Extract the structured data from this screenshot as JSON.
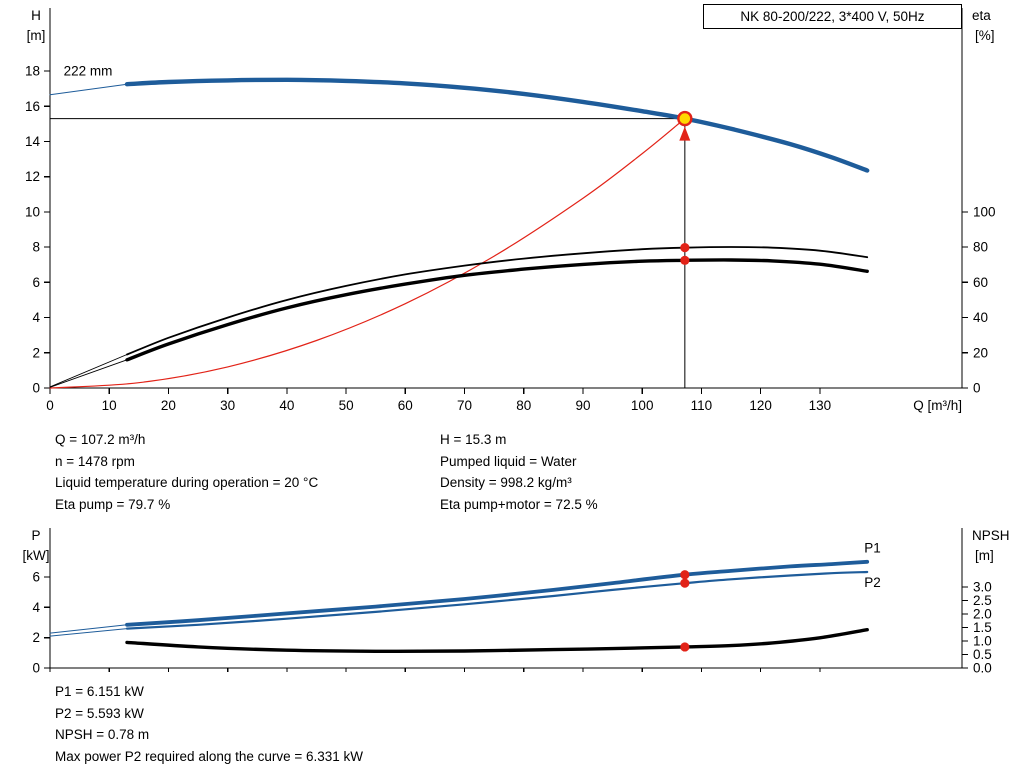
{
  "title_box": "NK 80-200/222, 3*400 V, 50Hz",
  "colors": {
    "blue": "#1e5c9a",
    "red": "#e22318",
    "black": "#000000",
    "yellow": "#ffd800"
  },
  "info_top": {
    "col1": [
      "Q = 107.2 m³/h",
      "n = 1478 rpm",
      "Liquid temperature during operation = 20 °C",
      "Eta pump = 79.7 %"
    ],
    "col2": [
      "H = 15.3 m",
      "Pumped liquid = Water",
      "Density = 998.2 kg/m³",
      "Eta pump+motor = 72.5 %"
    ]
  },
  "info_bottom": [
    "P1 = 6.151 kW",
    "P2 = 5.593 kW",
    "NPSH = 0.78 m",
    "Max power P2 required along the curve = 6.331 kW"
  ],
  "chart_data": [
    {
      "id": "hq",
      "type": "line",
      "title": "NK 80-200/222, 3*400 V, 50Hz",
      "x_axis": {
        "label": "Q [m³/h]",
        "max": 154,
        "ticks": [
          {
            "v": 0,
            "t": "0"
          },
          {
            "v": 10,
            "t": "10"
          },
          {
            "v": 20,
            "t": "20"
          },
          {
            "v": 30,
            "t": "30"
          },
          {
            "v": 40,
            "t": "40"
          },
          {
            "v": 50,
            "t": "50"
          },
          {
            "v": 60,
            "t": "60"
          },
          {
            "v": 70,
            "t": "70"
          },
          {
            "v": 80,
            "t": "80"
          },
          {
            "v": 90,
            "t": "90"
          },
          {
            "v": 100,
            "t": "100"
          },
          {
            "v": 110,
            "t": "110"
          },
          {
            "v": 120,
            "t": "120"
          },
          {
            "v": 130,
            "t": "130"
          }
        ]
      },
      "y_left": {
        "title": [
          "H",
          "[m]"
        ],
        "max": 21.58,
        "ticks": [
          {
            "v": 0,
            "t": "0"
          },
          {
            "v": 2,
            "t": "2"
          },
          {
            "v": 4,
            "t": "4"
          },
          {
            "v": 6,
            "t": "6"
          },
          {
            "v": 8,
            "t": "8"
          },
          {
            "v": 10,
            "t": "10"
          },
          {
            "v": 12,
            "t": "12"
          },
          {
            "v": 14,
            "t": "14"
          },
          {
            "v": 16,
            "t": "16"
          },
          {
            "v": 18,
            "t": "18"
          }
        ]
      },
      "y_right": {
        "title": [
          "eta",
          "[%]"
        ],
        "left_units_per_unit": 0.1,
        "ticks": [
          {
            "v": 0,
            "t": "0"
          },
          {
            "v": 20,
            "t": "20"
          },
          {
            "v": 40,
            "t": "40"
          },
          {
            "v": 60,
            "t": "60"
          },
          {
            "v": 80,
            "t": "80"
          },
          {
            "v": 100,
            "t": "100"
          }
        ]
      },
      "series": [
        {
          "name": "system-curve",
          "axis": "left",
          "color": "red",
          "width": 1.2,
          "points": [
            [
              0,
              0
            ],
            [
              15,
              0.3
            ],
            [
              30,
              1.2
            ],
            [
              45,
              2.7
            ],
            [
              60,
              4.79
            ],
            [
              75,
              7.49
            ],
            [
              90,
              10.78
            ],
            [
              100,
              13.31
            ],
            [
              107.2,
              15.3
            ]
          ]
        },
        {
          "name": "head-lead-line",
          "axis": "left",
          "color": "blue",
          "width": 1,
          "points": [
            [
              0,
              16.65
            ],
            [
              13,
              17.25
            ]
          ]
        },
        {
          "name": "head-curve",
          "axis": "left",
          "color": "blue",
          "width": 4.4,
          "points": [
            [
              13,
              17.25
            ],
            [
              20,
              17.38
            ],
            [
              30,
              17.47
            ],
            [
              40,
              17.5
            ],
            [
              50,
              17.44
            ],
            [
              60,
              17.3
            ],
            [
              70,
              17.05
            ],
            [
              80,
              16.7
            ],
            [
              90,
              16.25
            ],
            [
              100,
              15.72
            ],
            [
              107.2,
              15.3
            ],
            [
              115,
              14.72
            ],
            [
              125,
              13.85
            ],
            [
              132,
              13.1
            ],
            [
              138,
              12.35
            ]
          ]
        },
        {
          "name": "eta-pump-lead-line",
          "axis": "right",
          "color": "black",
          "width": 0.9,
          "points": [
            [
              0,
              0.6
            ],
            [
              13,
              19
            ]
          ]
        },
        {
          "name": "eta-pump-curve",
          "axis": "right",
          "color": "black",
          "width": 1.8,
          "points": [
            [
              13,
              19
            ],
            [
              20,
              28.5
            ],
            [
              30,
              40
            ],
            [
              40,
              50
            ],
            [
              50,
              58
            ],
            [
              60,
              64.5
            ],
            [
              70,
              69.5
            ],
            [
              80,
              73.5
            ],
            [
              90,
              76.5
            ],
            [
              100,
              78.8
            ],
            [
              107.2,
              79.7
            ],
            [
              115,
              80.1
            ],
            [
              122,
              79.7
            ],
            [
              130,
              78
            ],
            [
              138,
              74.3
            ]
          ]
        },
        {
          "name": "eta-pump-motor-lead-line",
          "axis": "right",
          "color": "black",
          "width": 0.9,
          "points": [
            [
              0,
              0.4
            ],
            [
              13,
              16
            ]
          ]
        },
        {
          "name": "eta-pump-motor-curve",
          "axis": "right",
          "color": "black",
          "width": 3.4,
          "points": [
            [
              13,
              16
            ],
            [
              20,
              25
            ],
            [
              30,
              36
            ],
            [
              40,
              45.5
            ],
            [
              50,
              53
            ],
            [
              60,
              59
            ],
            [
              70,
              64
            ],
            [
              80,
              67.5
            ],
            [
              90,
              70.2
            ],
            [
              100,
              72
            ],
            [
              107.2,
              72.5
            ],
            [
              115,
              72.7
            ],
            [
              122,
              72.2
            ],
            [
              130,
              70.3
            ],
            [
              138,
              66.3
            ]
          ]
        }
      ],
      "guides": [
        {
          "type": "v",
          "q": 107.2,
          "v1": 15.3
        },
        {
          "type": "h",
          "v": 15.3,
          "q1": 107.2
        }
      ],
      "arrow": {
        "q": 107.2,
        "v": 15.3
      },
      "markers": [
        {
          "style": "dot",
          "axis": "right",
          "q": 107.2,
          "v": 79.7
        },
        {
          "style": "dot",
          "axis": "right",
          "q": 107.2,
          "v": 72.5
        },
        {
          "style": "op",
          "axis": "left",
          "q": 107.2,
          "v": 15.3
        }
      ],
      "annotations": [
        {
          "text": "222 mm",
          "q": 2.3,
          "v": 17.75,
          "color": "black"
        }
      ]
    },
    {
      "id": "pn",
      "type": "line",
      "title": "",
      "x_axis": {
        "label": "",
        "max": 154,
        "ticks": [
          {
            "v": 0,
            "t": ""
          },
          {
            "v": 10,
            "t": ""
          },
          {
            "v": 20,
            "t": ""
          },
          {
            "v": 30,
            "t": ""
          },
          {
            "v": 40,
            "t": ""
          },
          {
            "v": 50,
            "t": ""
          },
          {
            "v": 60,
            "t": ""
          },
          {
            "v": 70,
            "t": ""
          },
          {
            "v": 80,
            "t": ""
          },
          {
            "v": 90,
            "t": ""
          },
          {
            "v": 100,
            "t": ""
          },
          {
            "v": 110,
            "t": ""
          },
          {
            "v": 120,
            "t": ""
          },
          {
            "v": 130,
            "t": ""
          }
        ]
      },
      "y_left": {
        "title": [
          "P",
          "[kW]"
        ],
        "max": 9.23,
        "ticks": [
          {
            "v": 0,
            "t": "0"
          },
          {
            "v": 2,
            "t": "2"
          },
          {
            "v": 4,
            "t": "4"
          },
          {
            "v": 6,
            "t": "6"
          }
        ]
      },
      "y_right": {
        "title": [
          "NPSH",
          "[m]"
        ],
        "left_units_per_unit": 1.78,
        "ticks": [
          {
            "v": 0,
            "t": "0.0"
          },
          {
            "v": 0.5,
            "t": "0.5"
          },
          {
            "v": 1,
            "t": "1.0"
          },
          {
            "v": 1.5,
            "t": "1.5"
          },
          {
            "v": 2,
            "t": "2.0"
          },
          {
            "v": 2.5,
            "t": "2.5"
          },
          {
            "v": 3,
            "t": "3.0"
          }
        ]
      },
      "series": [
        {
          "name": "p1-lead-line",
          "axis": "left",
          "color": "blue",
          "width": 1,
          "points": [
            [
              0,
              2.3
            ],
            [
              13,
              2.85
            ]
          ]
        },
        {
          "name": "p2-lead-line",
          "axis": "left",
          "color": "blue",
          "width": 1,
          "points": [
            [
              0,
              2.1
            ],
            [
              13,
              2.6
            ]
          ]
        },
        {
          "name": "p2-curve",
          "axis": "left",
          "color": "blue",
          "width": 2.2,
          "points": [
            [
              13,
              2.6
            ],
            [
              25,
              2.85
            ],
            [
              40,
              3.25
            ],
            [
              55,
              3.7
            ],
            [
              70,
              4.2
            ],
            [
              85,
              4.75
            ],
            [
              95,
              5.15
            ],
            [
              107.2,
              5.593
            ],
            [
              115,
              5.85
            ],
            [
              125,
              6.1
            ],
            [
              132,
              6.25
            ],
            [
              138,
              6.33
            ]
          ]
        },
        {
          "name": "p1-curve",
          "axis": "left",
          "color": "blue",
          "width": 3.8,
          "points": [
            [
              13,
              2.85
            ],
            [
              25,
              3.15
            ],
            [
              40,
              3.6
            ],
            [
              55,
              4.05
            ],
            [
              70,
              4.55
            ],
            [
              85,
              5.15
            ],
            [
              95,
              5.6
            ],
            [
              107.2,
              6.151
            ],
            [
              115,
              6.4
            ],
            [
              125,
              6.7
            ],
            [
              132,
              6.85
            ],
            [
              138,
              7.0
            ]
          ]
        },
        {
          "name": "npsh-curve",
          "axis": "right",
          "color": "black",
          "width": 3.4,
          "points": [
            [
              13,
              0.95
            ],
            [
              25,
              0.78
            ],
            [
              40,
              0.66
            ],
            [
              55,
              0.62
            ],
            [
              70,
              0.63
            ],
            [
              85,
              0.68
            ],
            [
              95,
              0.72
            ],
            [
              107.2,
              0.78
            ],
            [
              115,
              0.83
            ],
            [
              122,
              0.93
            ],
            [
              130,
              1.12
            ],
            [
              138,
              1.42
            ]
          ]
        }
      ],
      "guides": [],
      "markers": [
        {
          "style": "dot",
          "axis": "left",
          "q": 107.2,
          "v": 6.151
        },
        {
          "style": "dot",
          "axis": "left",
          "q": 107.2,
          "v": 5.593
        },
        {
          "style": "dot",
          "axis": "right",
          "q": 107.2,
          "v": 0.78
        }
      ],
      "annotations": [
        {
          "text": "P1",
          "q": 137.5,
          "v": 7.6,
          "color": "blue"
        },
        {
          "text": "P2",
          "q": 137.5,
          "v": 5.35,
          "color": "blue"
        }
      ]
    }
  ]
}
